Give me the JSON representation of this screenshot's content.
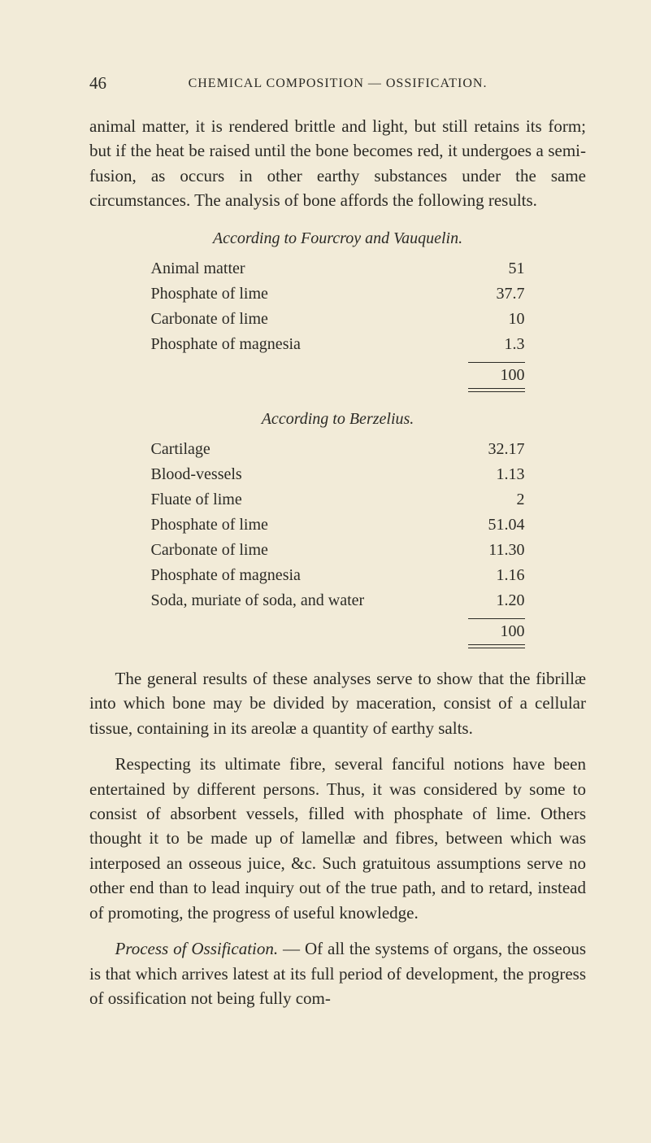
{
  "page_number": "46",
  "running_head": "CHEMICAL COMPOSITION — OSSIFICATION.",
  "para1": "animal matter, it is rendered brittle and light, but still retains its form; but if the heat be raised until the bone becomes red, it undergoes a semi-fusion, as occurs in other earthy substances under the same circumstances.  The analysis of bone affords the following results.",
  "table1": {
    "title": "According to Fourcroy and Vauquelin.",
    "rows": [
      {
        "label": "Animal matter",
        "value": "51"
      },
      {
        "label": "Phosphate of lime",
        "value": "37.7"
      },
      {
        "label": "Carbonate of lime",
        "value": "10"
      },
      {
        "label": "Phosphate of magnesia",
        "value": "1.3"
      }
    ],
    "total": "100"
  },
  "table2": {
    "title": "According to Berzelius.",
    "rows": [
      {
        "label": "Cartilage",
        "value": "32.17"
      },
      {
        "label": "Blood-vessels",
        "value": "1.13"
      },
      {
        "label": "Fluate of lime",
        "value": "2"
      },
      {
        "label": "Phosphate of lime",
        "value": "51.04"
      },
      {
        "label": "Carbonate of lime",
        "value": "11.30"
      },
      {
        "label": "Phosphate of magnesia",
        "value": "1.16"
      },
      {
        "label": "Soda, muriate of soda, and water",
        "value": "1.20"
      }
    ],
    "total": "100"
  },
  "para2": "The general results of these analyses serve to show that the fibrillæ into which bone may be divided by maceration, consist of a cellular tissue, containing in its areolæ a quantity of earthy salts.",
  "para3": "Respecting its ultimate fibre, several fanciful notions have been entertained by different persons.  Thus, it was considered by some to consist of absorbent vessels, filled with phosphate of lime.  Others thought it to be made up of lamellæ and fibres, between which was interposed an osseous juice, &c. Such gratuitous assumptions serve no other end than to lead inquiry out of the true path, and to retard, instead of promoting, the progress of useful knowledge.",
  "para4_lead_italic": "Process of Ossification.",
  "para4_rest": " — Of all the systems of organs, the osseous is that which arrives latest at its full period of development, the progress of ossification not being fully com-",
  "colors": {
    "paper_bg": "#f2ebd8",
    "ink": "#2b2a25"
  },
  "typography": {
    "body_fontsize_pt": 21,
    "head_fontsize_pt": 16,
    "table_fontsize_pt": 20,
    "font_family": "Times New Roman serif"
  }
}
